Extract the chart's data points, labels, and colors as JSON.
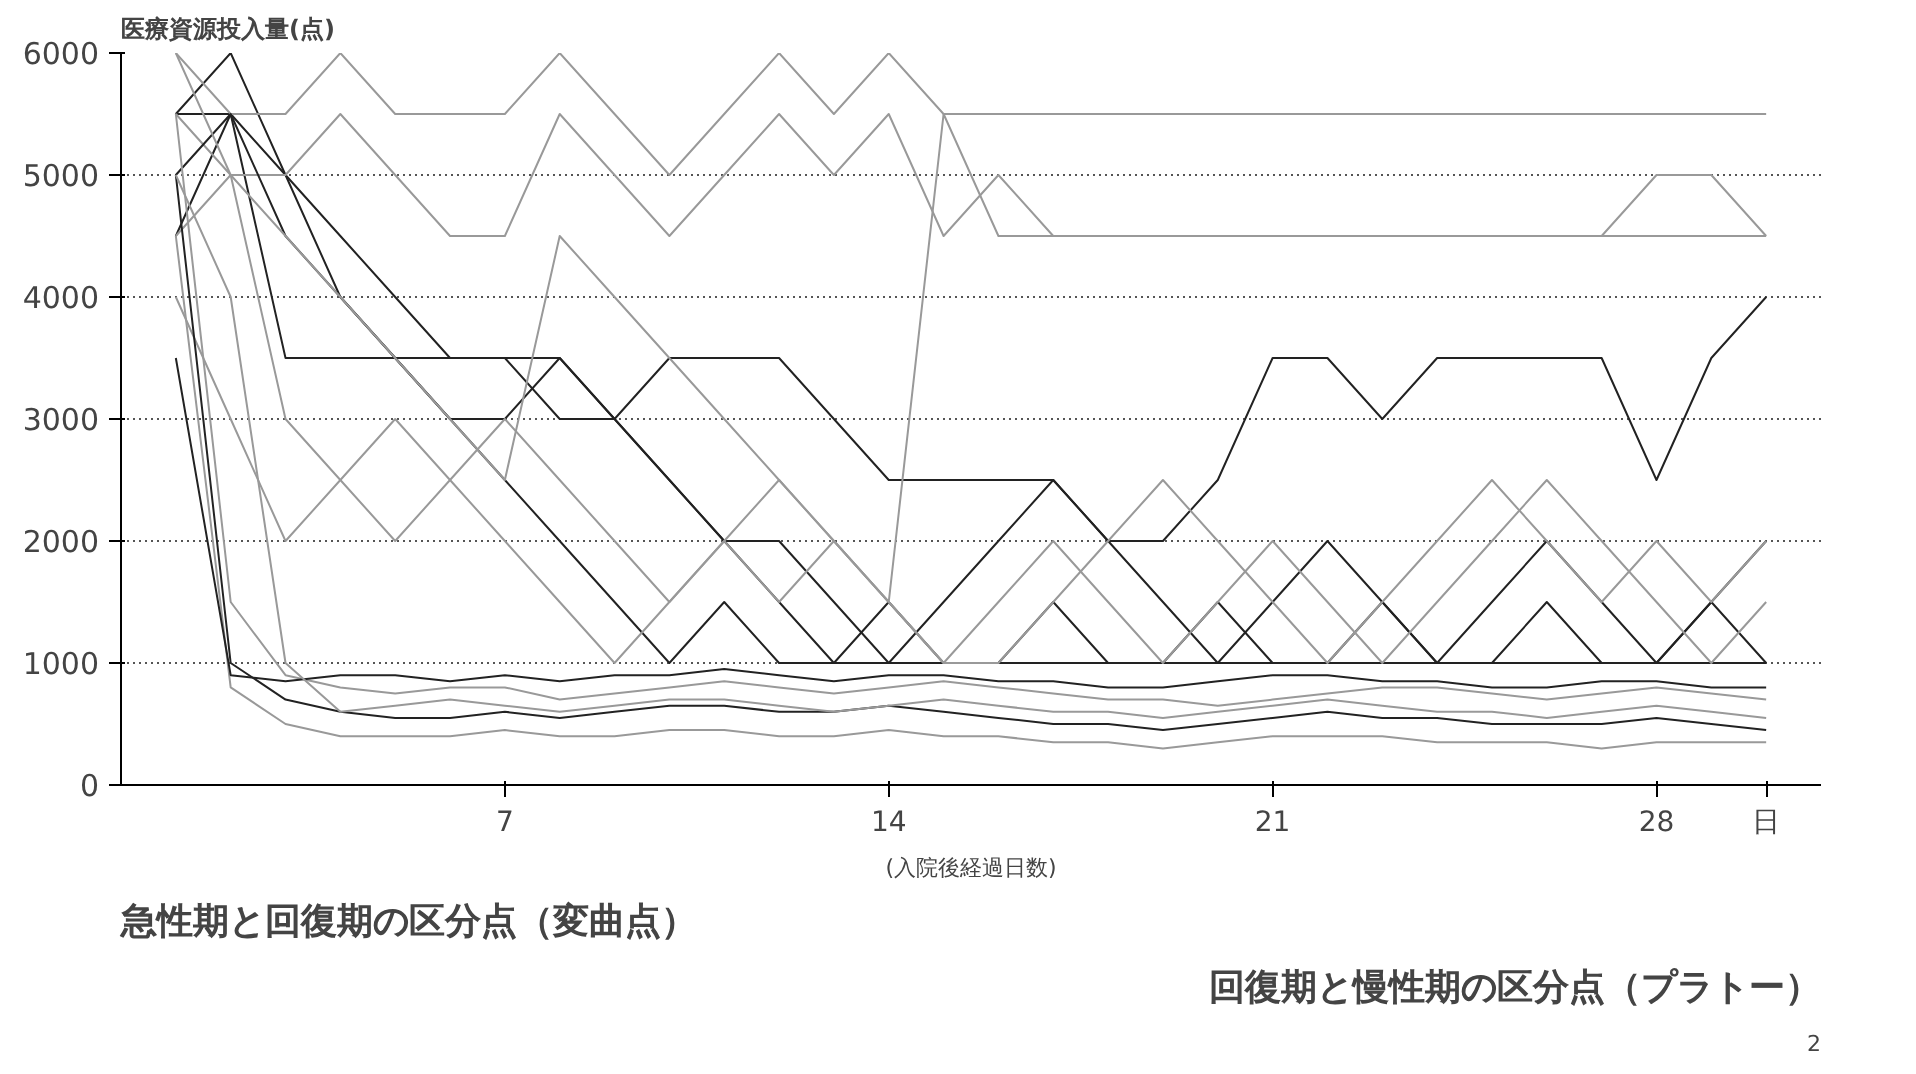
{
  "chart_data": {
    "type": "line",
    "ylabel": "医療資源投入量(点)",
    "xlabel": "(入院後経過日数)",
    "x": [
      1,
      2,
      3,
      4,
      5,
      6,
      7,
      8,
      9,
      10,
      11,
      12,
      13,
      14,
      15,
      16,
      17,
      18,
      19,
      20,
      21,
      22,
      23,
      24,
      25,
      26,
      27,
      28,
      29,
      30
    ],
    "xlim": [
      0,
      31
    ],
    "xticks": [
      7,
      14,
      21,
      28,
      {
        "value": 30,
        "label": "日"
      }
    ],
    "ylim": [
      0,
      6000
    ],
    "yticks": [
      0,
      1000,
      2000,
      3000,
      4000,
      5000,
      6000
    ],
    "grid": "y",
    "marker": "none",
    "annotations": [
      "急性期と回復期の区分点（変曲点）",
      "回復期と慢性期の区分点（プラトー）",
      "2"
    ],
    "series": [
      {
        "color": "#222222",
        "values": [
          5500,
          6000,
          5000,
          4500,
          4000,
          3500,
          3500,
          3500,
          3000,
          2500,
          2000,
          1500,
          1000,
          1500,
          1000,
          1000,
          1500,
          1000,
          1000,
          1500,
          1000,
          1000,
          1500,
          1000,
          1000,
          1500,
          1000,
          1000,
          1500,
          1000
        ]
      },
      {
        "color": "#222222",
        "values": [
          5500,
          5500,
          5000,
          4000,
          3500,
          3000,
          3000,
          3500,
          3000,
          2500,
          2000,
          2000,
          1500,
          1000,
          1500,
          2000,
          2500,
          2000,
          1500,
          1000,
          1500,
          2000,
          1500,
          1000,
          1500,
          2000,
          1500,
          1000,
          1500,
          2000
        ]
      },
      {
        "color": "#222222",
        "values": [
          4500,
          5500,
          3500,
          3500,
          3500,
          3500,
          3500,
          3000,
          3000,
          3500,
          3500,
          3500,
          3000,
          2500,
          2500,
          2500,
          2500,
          2000,
          2000,
          2500,
          3500,
          3500,
          3000,
          3500,
          3500,
          3500,
          3500,
          2500,
          3500,
          4000
        ]
      },
      {
        "color": "#999999",
        "values": [
          6000,
          5500,
          5500,
          6000,
          5500,
          5500,
          5500,
          6000,
          5500,
          5000,
          5500,
          6000,
          5500,
          6000,
          5500,
          5500,
          5500,
          5500,
          5500,
          5500,
          5500,
          5500,
          5500,
          5500,
          5500,
          5500,
          5500,
          5500,
          5500,
          5500
        ]
      },
      {
        "color": "#999999",
        "values": [
          5500,
          5000,
          5000,
          5500,
          5000,
          4500,
          4500,
          5500,
          5000,
          4500,
          5000,
          5500,
          5000,
          5500,
          4500,
          5000,
          4500,
          4500,
          4500,
          4500,
          4500,
          4500,
          4500,
          4500,
          4500,
          4500,
          4500,
          5000,
          5000,
          4500
        ]
      },
      {
        "color": "#222222",
        "values": [
          5000,
          5500,
          4500,
          4000,
          3500,
          3000,
          2500,
          2000,
          1500,
          1000,
          1500,
          1000,
          1000,
          1000,
          1000,
          1000,
          1000,
          1000,
          1000,
          1000,
          1000,
          1000,
          1000,
          1000,
          1000,
          1000,
          1000,
          1000,
          1000,
          1000
        ]
      },
      {
        "color": "#999999",
        "values": [
          4500,
          5000,
          3000,
          2500,
          2000,
          2500,
          3000,
          2500,
          2000,
          1500,
          2000,
          2500,
          2000,
          1500,
          1000,
          1500,
          2000,
          1500,
          1000,
          1500,
          2000,
          1500,
          1000,
          1500,
          2000,
          2500,
          2000,
          1500,
          1000,
          1500
        ]
      },
      {
        "color": "#999999",
        "values": [
          4000,
          3000,
          2000,
          2500,
          3000,
          2500,
          2000,
          1500,
          1000,
          1500,
          2000,
          1500,
          2000,
          1500,
          1000,
          1000,
          1500,
          2000,
          2500,
          2000,
          1500,
          1000,
          1500,
          2000,
          2500,
          2000,
          1500,
          2000,
          1500,
          2000
        ]
      },
      {
        "color": "#999999",
        "values": [
          5500,
          1500,
          900,
          800,
          750,
          800,
          800,
          700,
          750,
          800,
          850,
          800,
          750,
          800,
          850,
          800,
          750,
          700,
          700,
          650,
          700,
          750,
          800,
          800,
          750,
          700,
          750,
          800,
          750,
          700
        ]
      },
      {
        "color": "#222222",
        "values": [
          5000,
          1000,
          700,
          600,
          550,
          550,
          600,
          550,
          600,
          650,
          650,
          600,
          600,
          650,
          600,
          550,
          500,
          500,
          450,
          500,
          550,
          600,
          550,
          550,
          500,
          500,
          500,
          550,
          500,
          450
        ]
      },
      {
        "color": "#999999",
        "values": [
          4500,
          800,
          500,
          400,
          400,
          400,
          450,
          400,
          400,
          450,
          450,
          400,
          400,
          450,
          400,
          400,
          350,
          350,
          300,
          350,
          400,
          400,
          400,
          350,
          350,
          350,
          300,
          350,
          350,
          350
        ]
      },
      {
        "color": "#222222",
        "values": [
          3500,
          900,
          850,
          900,
          900,
          850,
          900,
          850,
          900,
          900,
          950,
          900,
          850,
          900,
          900,
          850,
          850,
          800,
          800,
          850,
          900,
          900,
          850,
          850,
          800,
          800,
          850,
          850,
          800,
          800
        ]
      },
      {
        "color": "#999999",
        "values": [
          5000,
          4000,
          1000,
          600,
          650,
          700,
          650,
          600,
          650,
          700,
          700,
          650,
          600,
          650,
          700,
          650,
          600,
          600,
          550,
          600,
          650,
          700,
          650,
          600,
          600,
          550,
          600,
          650,
          600,
          550
        ]
      },
      {
        "color": "#999999",
        "values": [
          6000,
          5000,
          4500,
          4000,
          3500,
          3000,
          2500,
          4500,
          4000,
          3500,
          3000,
          2500,
          2000,
          1500,
          5500,
          4500,
          4500,
          4500,
          4500,
          4500,
          4500,
          4500,
          4500,
          4500,
          4500,
          4500,
          4500,
          4500,
          4500,
          4500
        ]
      }
    ]
  }
}
